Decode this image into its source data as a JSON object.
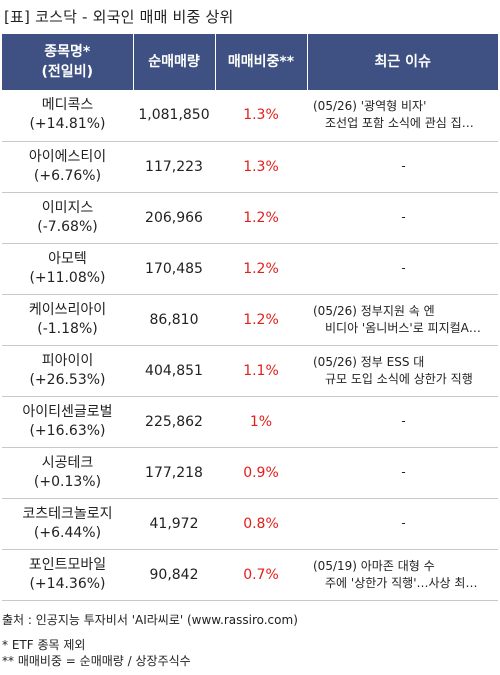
{
  "title": "[표] 코스닥 - 외국인 매매 비중 상위",
  "header": {
    "name_line1": "종목명*",
    "name_line2": "(전일비)",
    "volume": "순매매량",
    "ratio": "매매비중**",
    "issue": "최근 이슈"
  },
  "rows": [
    {
      "name": "메디콕스",
      "change": "(+14.81%)",
      "volume": "1,081,850",
      "ratio": "1.3%",
      "issue1": "(05/26) '광역형 비자'",
      "issue2": "조선업 포함 소식에 관심 집…"
    },
    {
      "name": "아이에스티이",
      "change": "(+6.76%)",
      "volume": "117,223",
      "ratio": "1.3%",
      "issue1": "-",
      "issue2": ""
    },
    {
      "name": "이미지스",
      "change": "(-7.68%)",
      "volume": "206,966",
      "ratio": "1.2%",
      "issue1": "-",
      "issue2": ""
    },
    {
      "name": "아모텍",
      "change": "(+11.08%)",
      "volume": "170,485",
      "ratio": "1.2%",
      "issue1": "-",
      "issue2": ""
    },
    {
      "name": "케이쓰리아이",
      "change": "(-1.18%)",
      "volume": "86,810",
      "ratio": "1.2%",
      "issue1": "(05/26) 정부지원 속 엔",
      "issue2": "비디아 '옴니버스'로 피지컬A…"
    },
    {
      "name": "피아이이",
      "change": "(+26.53%)",
      "volume": "404,851",
      "ratio": "1.1%",
      "issue1": "(05/26) 정부 ESS 대",
      "issue2": "규모 도입 소식에 상한가 직행"
    },
    {
      "name": "아이티센글로벌",
      "change": "(+16.63%)",
      "volume": "225,862",
      "ratio": "1%",
      "issue1": "-",
      "issue2": ""
    },
    {
      "name": "시공테크",
      "change": "(+0.13%)",
      "volume": "177,218",
      "ratio": "0.9%",
      "issue1": "-",
      "issue2": ""
    },
    {
      "name": "코츠테크놀로지",
      "change": "(+6.44%)",
      "volume": "41,972",
      "ratio": "0.8%",
      "issue1": "-",
      "issue2": ""
    },
    {
      "name": "포인트모바일",
      "change": "(+14.36%)",
      "volume": "90,842",
      "ratio": "0.7%",
      "issue1": "(05/19) 아마존 대형 수",
      "issue2": "주에 '상한가 직행'…사상 최…"
    }
  ],
  "footer": {
    "source": "출처 : 인공지능 투자비서 'AI라씨로' (www.rassiro.com)",
    "note1": "* ETF 종목 제외",
    "note2": "** 매매비중 = 순매매량 / 상장주식수"
  }
}
